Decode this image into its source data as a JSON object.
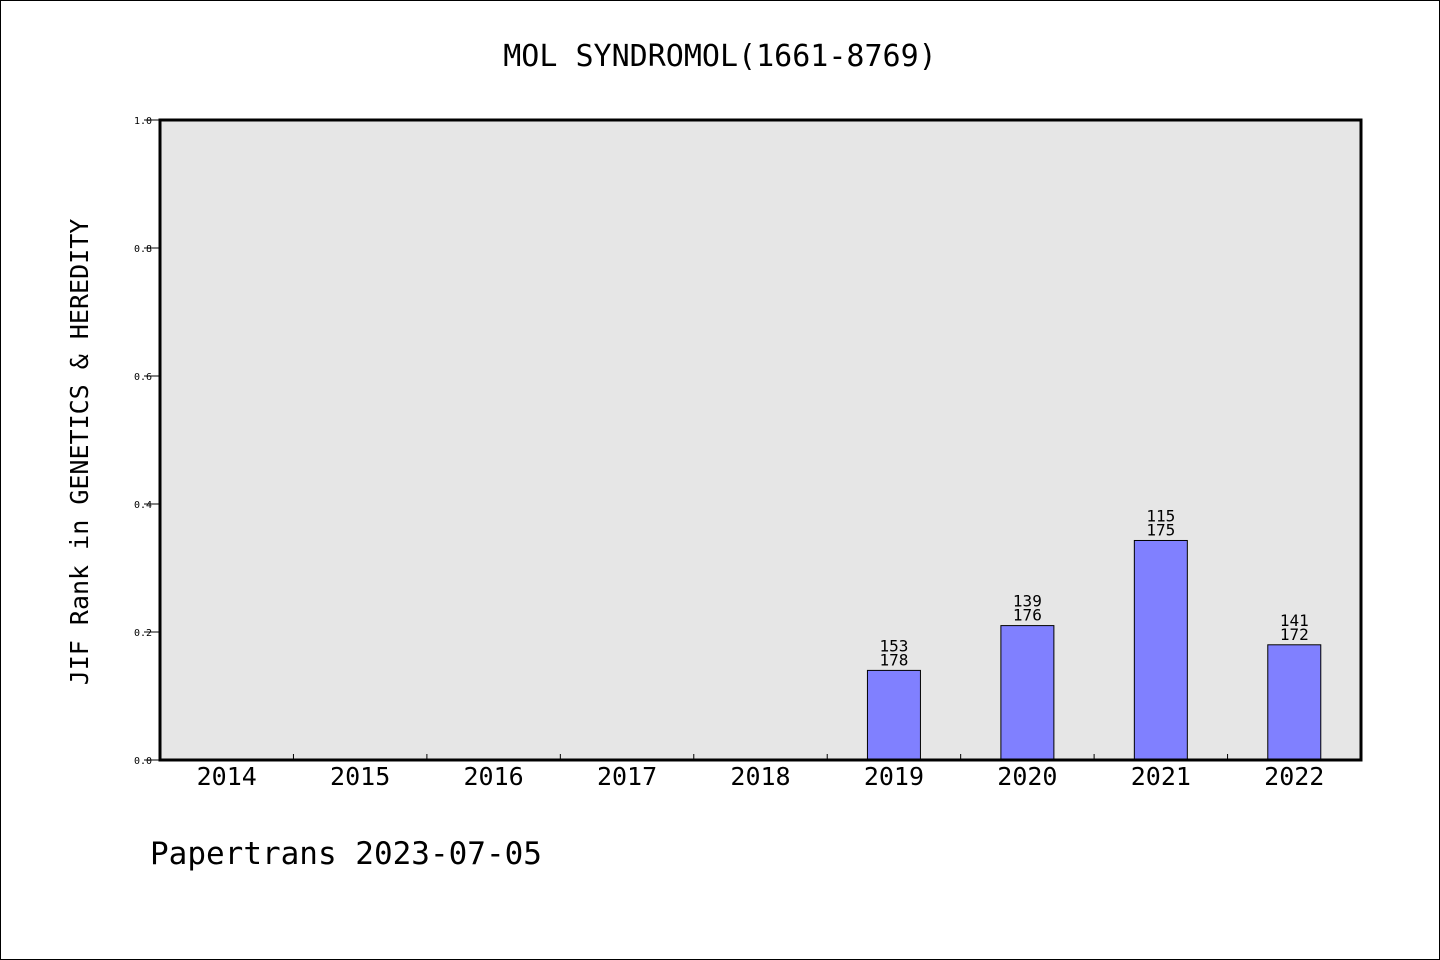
{
  "chart_data": {
    "type": "bar",
    "title": "MOL SYNDROMOL(1661-8769)",
    "xlabel": "",
    "ylabel": "JIF Rank in GENETICS & HEREDITY",
    "ylim": [
      0,
      1.0
    ],
    "yticks": [
      "0.0",
      "0.2",
      "0.4",
      "0.6",
      "0.8",
      "1.0"
    ],
    "categories": [
      "2014",
      "2015",
      "2016",
      "2017",
      "2018",
      "2019",
      "2020",
      "2021",
      "2022"
    ],
    "values": [
      null,
      null,
      null,
      null,
      null,
      0.14,
      0.21,
      0.343,
      0.18
    ],
    "bar_labels": [
      null,
      null,
      null,
      null,
      null,
      {
        "rank": "153",
        "total": "178"
      },
      {
        "rank": "139",
        "total": "176"
      },
      {
        "rank": "115",
        "total": "175"
      },
      {
        "rank": "141",
        "total": "172"
      }
    ],
    "grid": false,
    "colors": {
      "bar": "#8080ff",
      "plot_background": "#e6e6e6",
      "axis": "#000000"
    }
  },
  "footer": {
    "text": "Papertrans 2023-07-05"
  }
}
